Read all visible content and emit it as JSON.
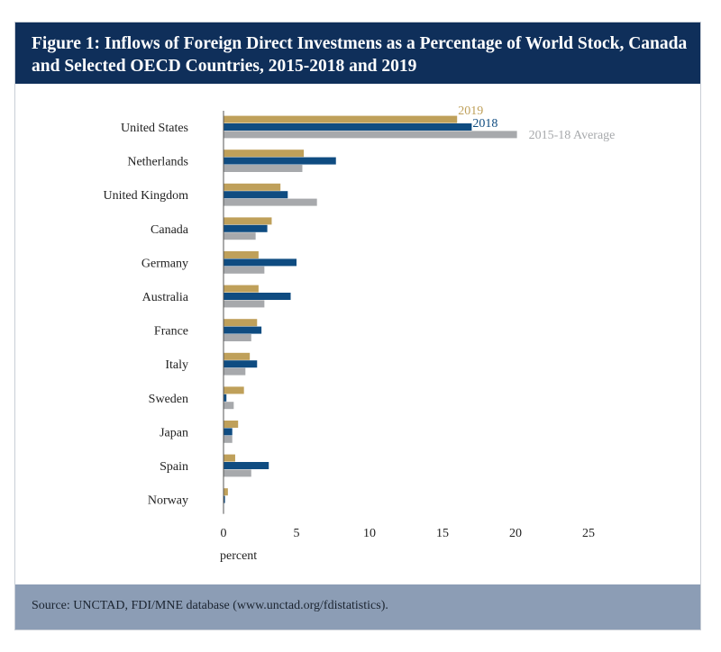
{
  "title": "Figure 1: Inflows of Foreign Direct Investmens as a Percentage of World Stock, Canada and Selected OECD Countries, 2015-2018 and 2019",
  "source": "Source: UNCTAD, FDI/MNE database (www.unctad.org/fdistatistics).",
  "colors": {
    "2019": "#bfa05a",
    "2018": "#0f4c81",
    "avg": "#a7a9ac",
    "title_bg": "#0f2f5a",
    "source_bg": "#8c9db5"
  },
  "chart_data": {
    "type": "bar",
    "orientation": "horizontal",
    "categories": [
      "United States",
      "Netherlands",
      "United Kingdom",
      "Canada",
      "Germany",
      "Australia",
      "France",
      "Italy",
      "Sweden",
      "Japan",
      "Spain",
      "Norway"
    ],
    "series": [
      {
        "name": "2019",
        "color": "#bfa05a",
        "values": [
          16.0,
          5.5,
          3.9,
          3.3,
          2.4,
          2.4,
          2.3,
          1.8,
          1.4,
          1.0,
          0.8,
          0.3
        ]
      },
      {
        "name": "2018",
        "color": "#0f4c81",
        "values": [
          17.0,
          7.7,
          4.4,
          3.0,
          5.0,
          4.6,
          2.6,
          2.3,
          0.2,
          0.6,
          3.1,
          0.1
        ]
      },
      {
        "name": "2015-18 Average",
        "color": "#a7a9ac",
        "values": [
          20.1,
          5.4,
          6.4,
          2.2,
          2.8,
          2.8,
          1.9,
          1.5,
          0.7,
          0.6,
          1.9,
          0.0
        ]
      }
    ],
    "xlabel": "percent",
    "xlim": [
      0,
      25
    ],
    "xticks": [
      0,
      5,
      10,
      15,
      20,
      25
    ],
    "grid": false,
    "legend": "inline labels at end of United States bars"
  }
}
